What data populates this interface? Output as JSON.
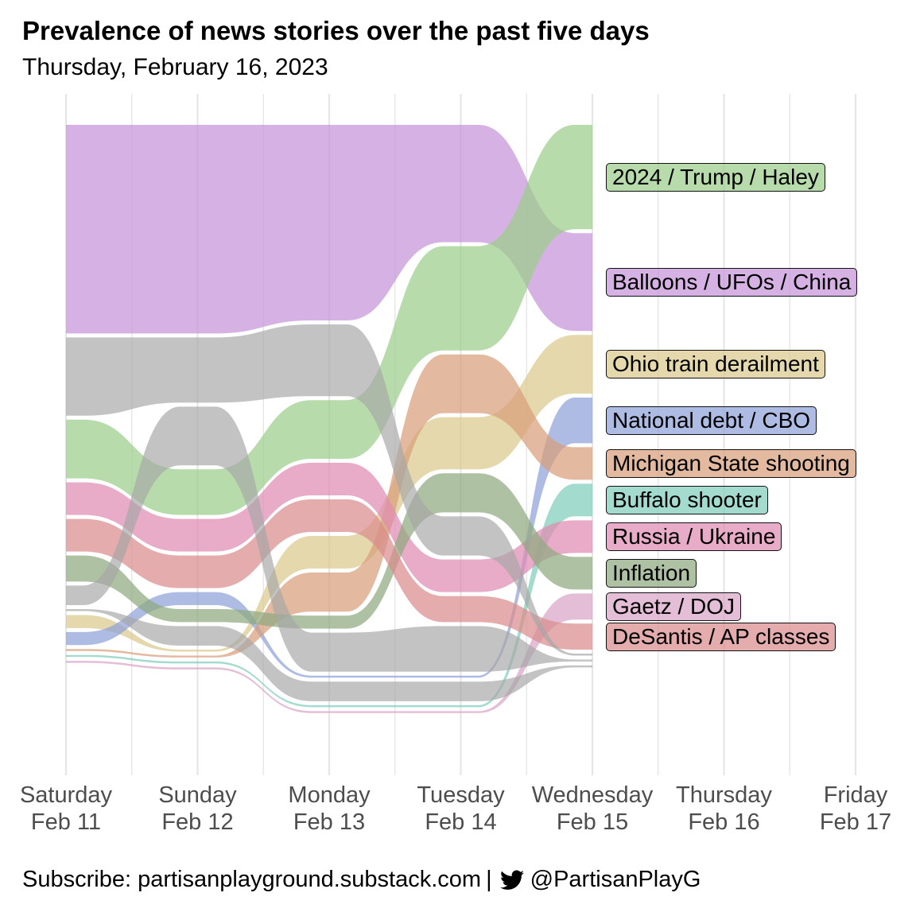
{
  "title": "Prevalence of news stories over the past five days",
  "subtitle": "Thursday, February 16, 2023",
  "footer": {
    "subscribe": "Subscribe: partisanplayground.substack.com",
    "separator": "|",
    "handle": "@PartisanPlayG",
    "icon": "twitter-bird-icon"
  },
  "chart_data": {
    "type": "area",
    "subtype": "bump-stream",
    "title": "Prevalence of news stories over the past five days",
    "subtitle": "Thursday, February 16, 2023",
    "x_ticks": [
      {
        "day": "Saturday",
        "date": "Feb 11"
      },
      {
        "day": "Sunday",
        "date": "Feb 12"
      },
      {
        "day": "Monday",
        "date": "Feb 13"
      },
      {
        "day": "Tuesday",
        "date": "Feb 14"
      },
      {
        "day": "Wednesday",
        "date": "Feb 15"
      },
      {
        "day": "Thursday",
        "date": "Feb 16"
      },
      {
        "day": "Friday",
        "date": "Feb 17"
      }
    ],
    "data_days": [
      "Feb 11",
      "Feb 12",
      "Feb 13",
      "Feb 14",
      "Feb 15"
    ],
    "grid": true,
    "legend": "direct labels at right of final day",
    "series": [
      {
        "name": "Balloons / UFOs / China",
        "color": "#c594d8",
        "values": [
          32,
          32,
          30,
          18,
          15
        ],
        "rank": [
          1,
          1,
          1,
          1,
          2
        ]
      },
      {
        "name": "2024 / Trump / Haley",
        "color": "#9ccd8c",
        "values": [
          9,
          7,
          9,
          16,
          16
        ],
        "rank": [
          3,
          4,
          3,
          2,
          1
        ]
      },
      {
        "name": "Ohio train derailment",
        "color": "#d9c98c",
        "values": [
          2,
          0.3,
          5,
          8,
          9
        ],
        "rank": [
          9,
          10,
          6,
          4,
          3
        ]
      },
      {
        "name": "National debt / CBO",
        "color": "#8fa2d8",
        "values": [
          2,
          2,
          0.3,
          0.3,
          7
        ],
        "rank": [
          10,
          7,
          10,
          10,
          4
        ]
      },
      {
        "name": "Michigan State shooting",
        "color": "#d8a07c",
        "values": [
          0.3,
          0.3,
          6,
          9,
          5
        ],
        "rank": [
          11,
          11,
          7,
          3,
          5
        ]
      },
      {
        "name": "Buffalo shooter",
        "color": "#7fcdbb",
        "values": [
          0.3,
          0.3,
          0.3,
          0.3,
          5
        ],
        "rank": [
          12,
          12,
          12,
          12,
          6
        ]
      },
      {
        "name": "Russia / Ukraine",
        "color": "#e08cb3",
        "values": [
          5,
          5,
          5,
          5,
          5
        ],
        "rank": [
          4,
          5,
          4,
          7,
          7
        ]
      },
      {
        "name": "Inflation",
        "color": "#8fa97f",
        "values": [
          4,
          2,
          2,
          6,
          5
        ],
        "rank": [
          6,
          8,
          8,
          5,
          8
        ]
      },
      {
        "name": "Gaetz / DOJ",
        "color": "#d8a5c6",
        "values": [
          0.3,
          0.3,
          0.3,
          0.3,
          4
        ],
        "rank": [
          13,
          13,
          13,
          13,
          9
        ]
      },
      {
        "name": "DeSantis / AP classes",
        "color": "#d98c8c",
        "values": [
          5,
          5,
          5,
          4,
          4
        ],
        "rank": [
          5,
          6,
          5,
          8,
          10
        ]
      },
      {
        "name": "",
        "color": "#a6a6a6",
        "values": [
          12,
          10,
          11,
          6,
          0.3
        ],
        "rank": [
          2,
          2,
          2,
          6,
          11
        ]
      },
      {
        "name": "",
        "color": "#a6a6a6",
        "values": [
          3,
          9,
          6,
          7,
          0.3
        ],
        "rank": [
          7,
          3,
          9,
          9,
          12
        ]
      },
      {
        "name": "",
        "color": "#a6a6a6",
        "values": [
          0.3,
          3,
          3,
          3,
          0.3
        ],
        "rank": [
          8,
          9,
          11,
          11,
          13
        ]
      }
    ]
  }
}
